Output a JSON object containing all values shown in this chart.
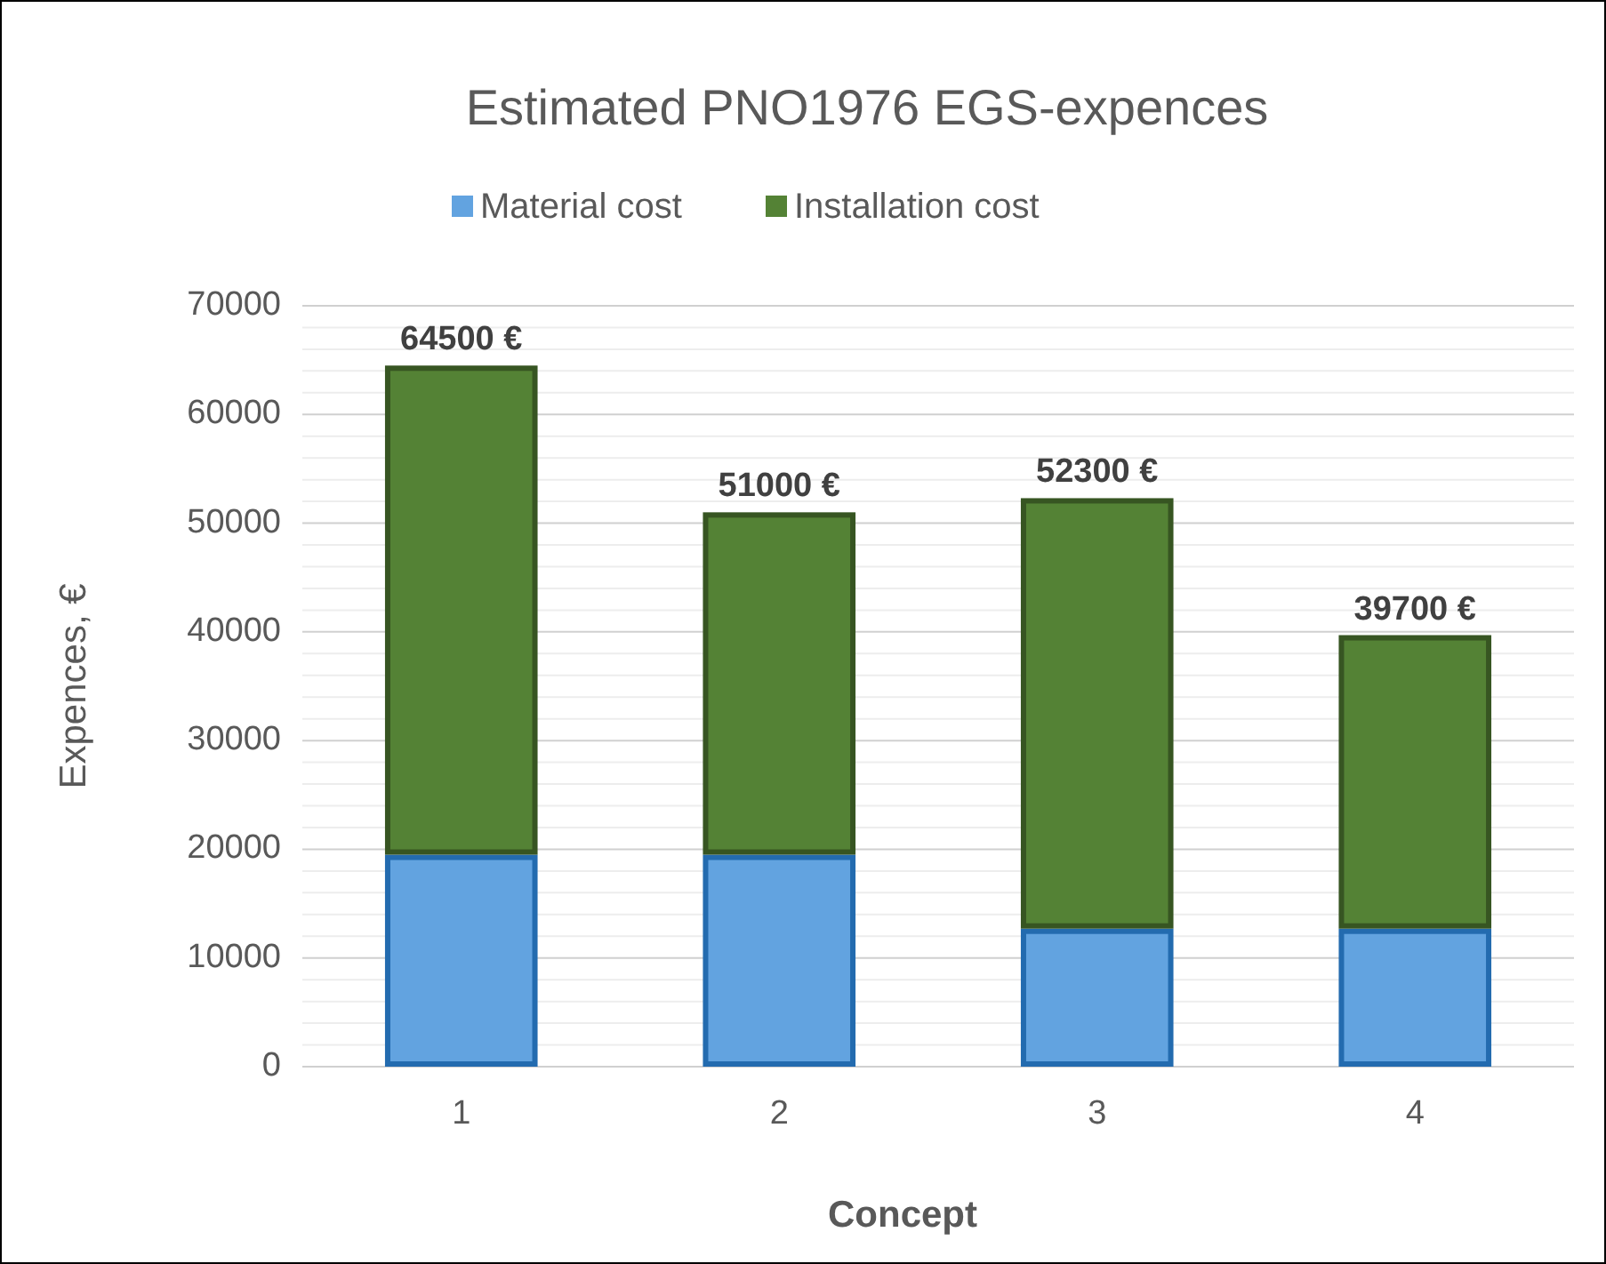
{
  "chart_data": {
    "type": "bar",
    "title": "Estimated PNO1976 EGS-expences",
    "xlabel": "Concept",
    "ylabel": "Expences, €",
    "categories": [
      "1",
      "2",
      "3",
      "4"
    ],
    "stacked": true,
    "series": [
      {
        "name": "Material cost",
        "color": "#62a3e0",
        "values": [
          19500,
          19500,
          12700,
          12700
        ]
      },
      {
        "name": "Installation cost",
        "color": "#548235",
        "values": [
          45000,
          31500,
          39600,
          27000
        ]
      }
    ],
    "totals": [
      "64500 €",
      "51000 €",
      "52300 €",
      "39700 €"
    ],
    "ylim": [
      0,
      70000
    ],
    "yticks": [
      0,
      {
        "value": 2000,
        "label": null
      },
      {
        "value": 4000,
        "label": null
      },
      {
        "value": 6000,
        "label": null
      },
      {
        "value": 8000,
        "label": null
      },
      10000,
      {
        "value": 12000,
        "label": null
      },
      {
        "value": 14000,
        "label": null
      },
      {
        "value": 16000,
        "label": null
      },
      {
        "value": 18000,
        "label": null
      },
      20000,
      {
        "value": 22000,
        "label": null
      },
      {
        "value": 24000,
        "label": null
      },
      {
        "value": 26000,
        "label": null
      },
      {
        "value": 28000,
        "label": null
      },
      30000,
      {
        "value": 32000,
        "label": null
      },
      {
        "value": 34000,
        "label": null
      },
      {
        "value": 36000,
        "label": null
      },
      {
        "value": 38000,
        "label": null
      },
      40000,
      {
        "value": 42000,
        "label": null
      },
      {
        "value": 44000,
        "label": null
      },
      {
        "value": 46000,
        "label": null
      },
      {
        "value": 48000,
        "label": null
      },
      50000,
      {
        "value": 52000,
        "label": null
      },
      {
        "value": 54000,
        "label": null
      },
      {
        "value": 56000,
        "label": null
      },
      {
        "value": 58000,
        "label": null
      },
      60000,
      {
        "value": 62000,
        "label": null
      },
      {
        "value": 64000,
        "label": null
      },
      {
        "value": 66000,
        "label": null
      },
      {
        "value": 68000,
        "label": null
      },
      70000
    ],
    "grid": true,
    "legend": "top"
  }
}
